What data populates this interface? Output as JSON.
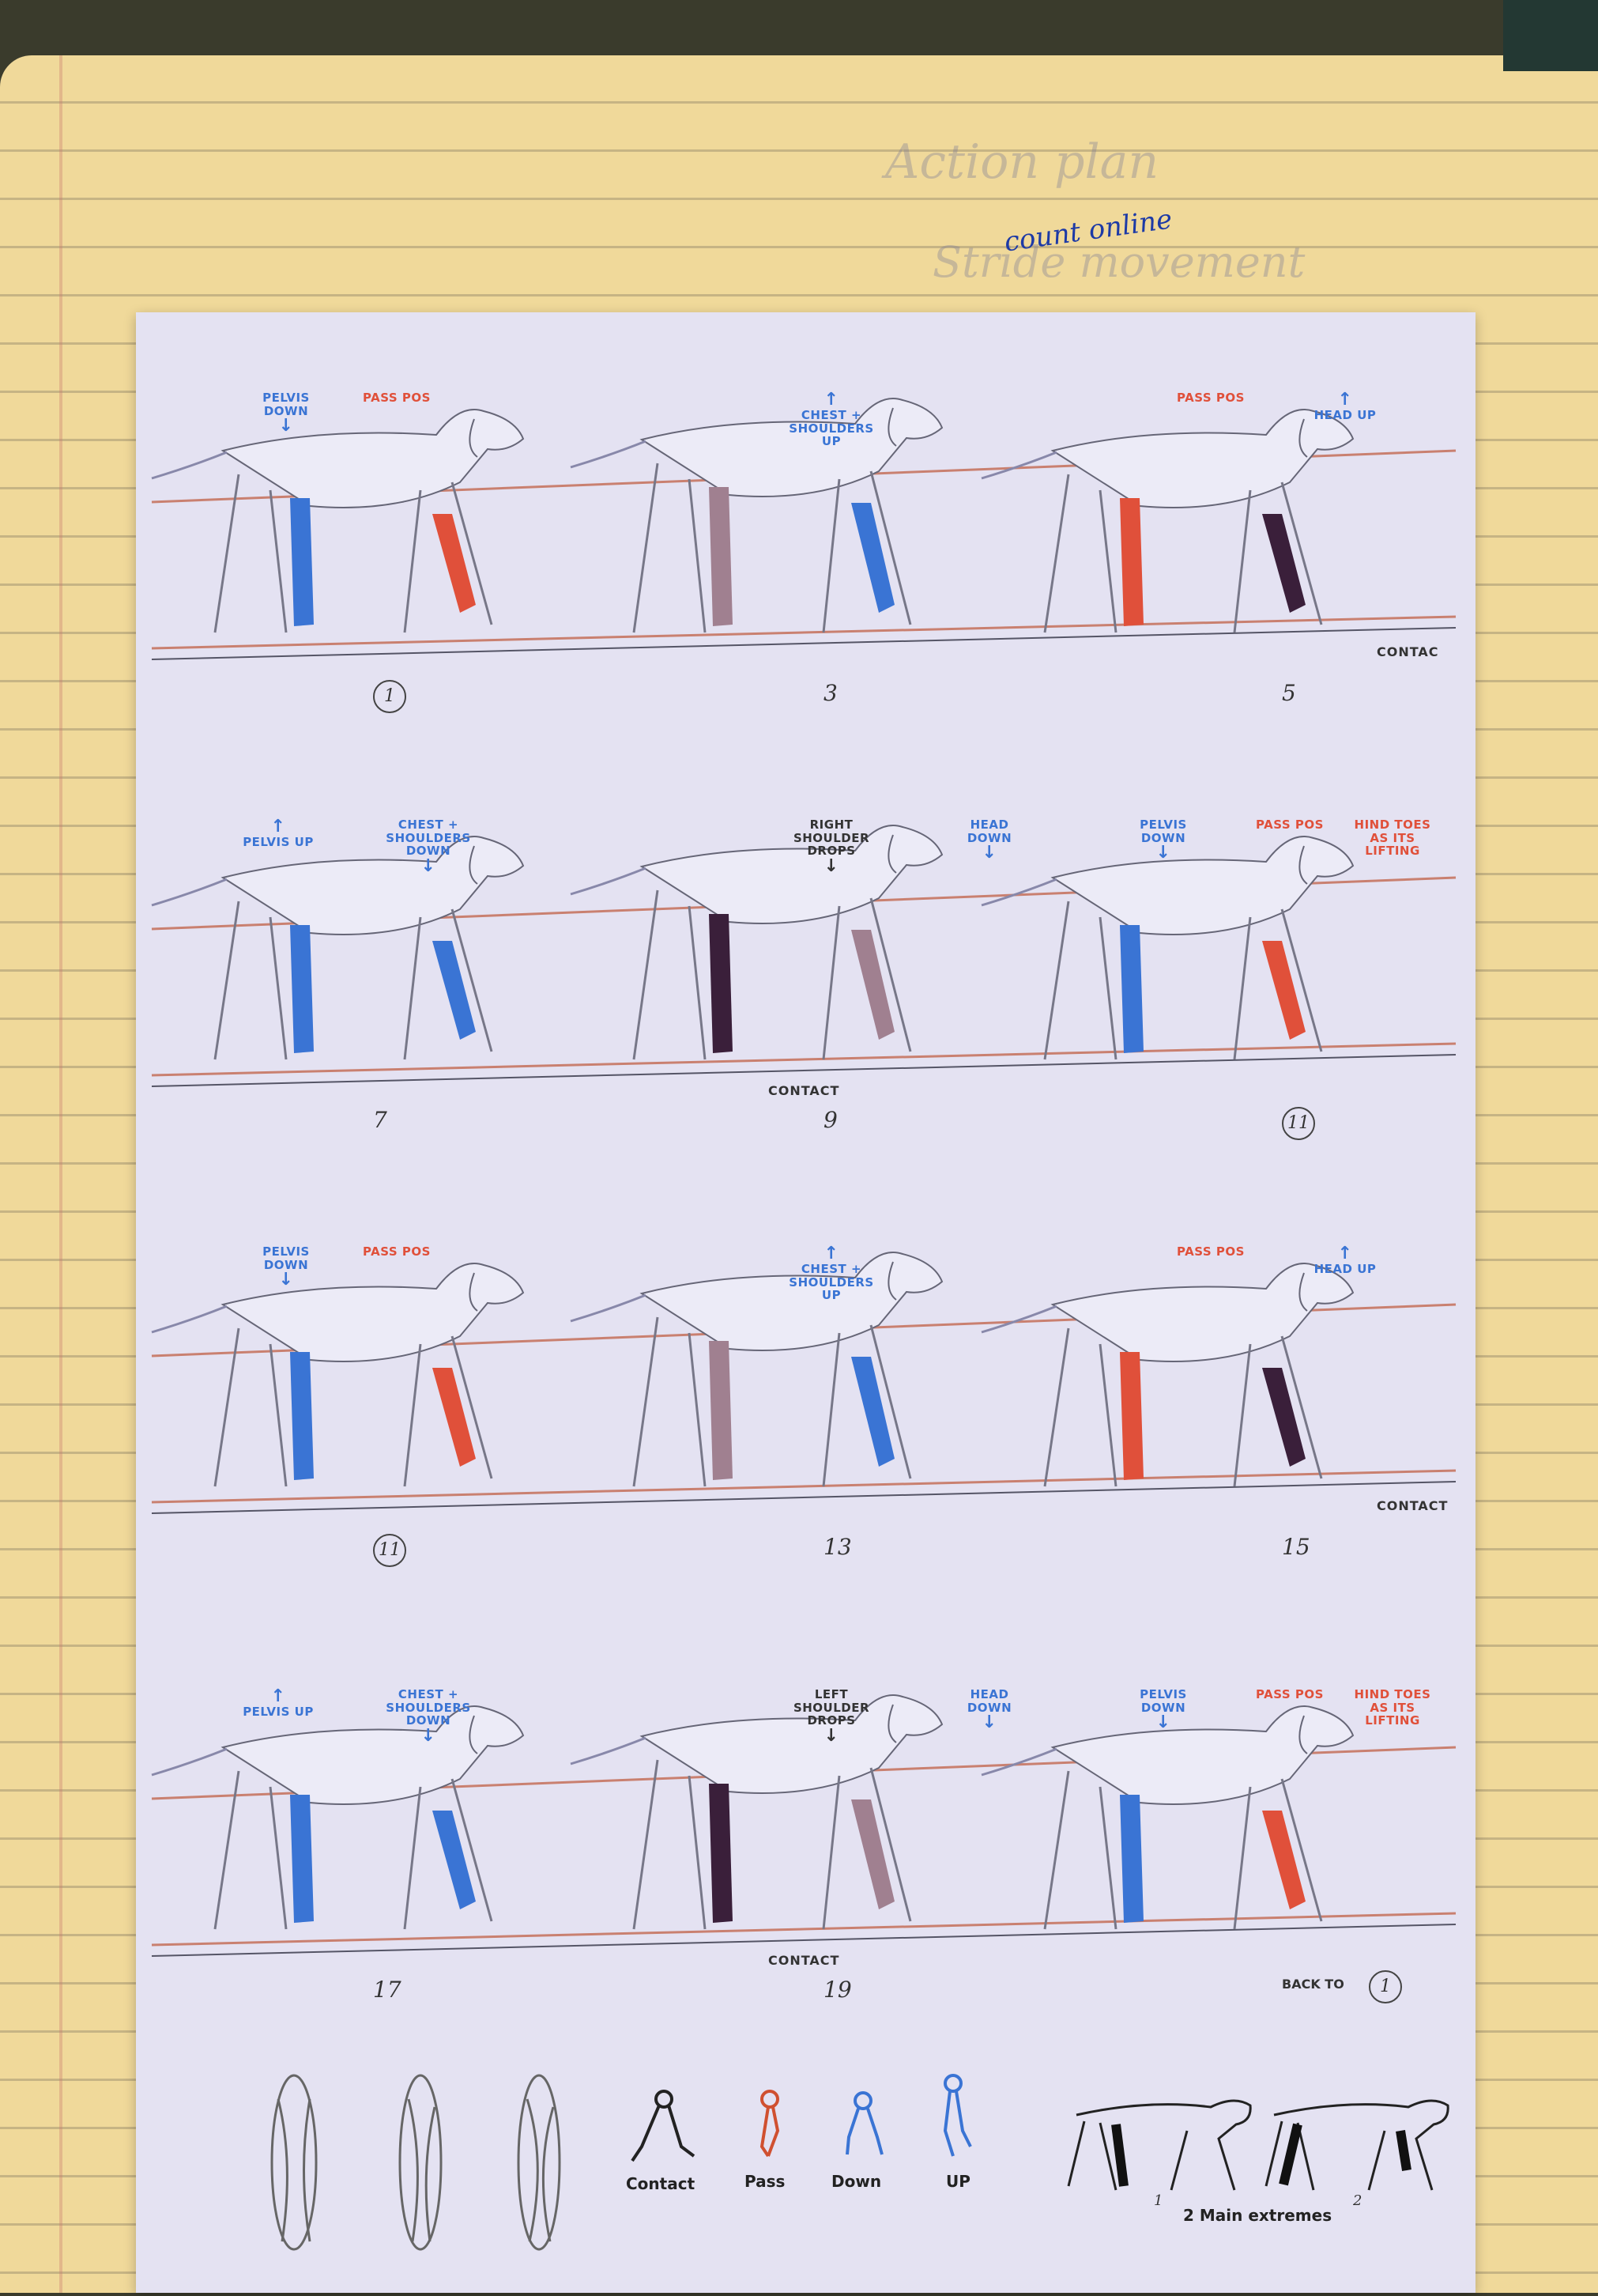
{
  "handwritten_note": "count online",
  "faint_notes": [
    "Action plan",
    "Stride movement"
  ],
  "rows": [
    {
      "tags": [
        {
          "text": "PELVIS DOWN",
          "color": "blue",
          "dir": "down"
        },
        {
          "text": "PASS POS",
          "color": "red",
          "dir": "none"
        },
        {
          "text": "CHEST + SHOULDERS UP",
          "color": "blue",
          "dir": "up"
        },
        {
          "text": "PASS POS",
          "color": "red",
          "dir": "none"
        },
        {
          "text": "HEAD UP",
          "color": "blue",
          "dir": "up"
        }
      ],
      "numbers": [
        "1",
        "3",
        "5"
      ],
      "side_label": "CONTAC"
    },
    {
      "tags": [
        {
          "text": "PELVIS UP",
          "color": "blue",
          "dir": "up"
        },
        {
          "text": "CHEST + SHOULDERS DOWN",
          "color": "blue",
          "dir": "down"
        },
        {
          "text": "RIGHT SHOULDER DROPS",
          "color": "dark",
          "dir": "down"
        },
        {
          "text": "HEAD DOWN",
          "color": "blue",
          "dir": "down"
        },
        {
          "text": "PELVIS DOWN",
          "color": "blue",
          "dir": "down"
        },
        {
          "text": "PASS POS",
          "color": "red",
          "dir": "none"
        },
        {
          "text": "HIND TOES AS ITS LIFTING",
          "color": "red",
          "dir": "none"
        }
      ],
      "numbers": [
        "7",
        "9",
        "11"
      ],
      "side_label": "CONTACT"
    },
    {
      "tags": [
        {
          "text": "PELVIS DOWN",
          "color": "blue",
          "dir": "down"
        },
        {
          "text": "PASS POS",
          "color": "red",
          "dir": "none"
        },
        {
          "text": "CHEST + SHOULDERS UP",
          "color": "blue",
          "dir": "up"
        },
        {
          "text": "PASS POS",
          "color": "red",
          "dir": "none"
        },
        {
          "text": "HEAD UP",
          "color": "blue",
          "dir": "up"
        }
      ],
      "numbers": [
        "11",
        "13",
        "15"
      ],
      "side_label": "CONTACT"
    },
    {
      "tags": [
        {
          "text": "PELVIS UP",
          "color": "blue",
          "dir": "up"
        },
        {
          "text": "CHEST + SHOULDERS DOWN",
          "color": "blue",
          "dir": "down"
        },
        {
          "text": "LEFT SHOULDER DROPS",
          "color": "dark",
          "dir": "down"
        },
        {
          "text": "HEAD DOWN",
          "color": "blue",
          "dir": "down"
        },
        {
          "text": "PELVIS DOWN",
          "color": "blue",
          "dir": "down"
        },
        {
          "text": "PASS POS",
          "color": "red",
          "dir": "none"
        },
        {
          "text": "HIND TOES AS ITS LIFTING",
          "color": "red",
          "dir": "none"
        }
      ],
      "numbers": [
        "17",
        "19",
        "BACK TO"
      ],
      "side_label": "CONTACT",
      "back_to_number": "1"
    }
  ],
  "legend": {
    "labels": [
      "Contact",
      "Pass",
      "Down",
      "UP"
    ],
    "extremes_caption": "2 Main extremes",
    "extreme_numbers": [
      "1",
      "2"
    ]
  },
  "colors": {
    "blue": "#3a74d4",
    "red": "#e0503a",
    "purple": "#3a1f3a",
    "mauve": "#a08090",
    "line_red": "#c98070",
    "line_dark": "#555566"
  }
}
